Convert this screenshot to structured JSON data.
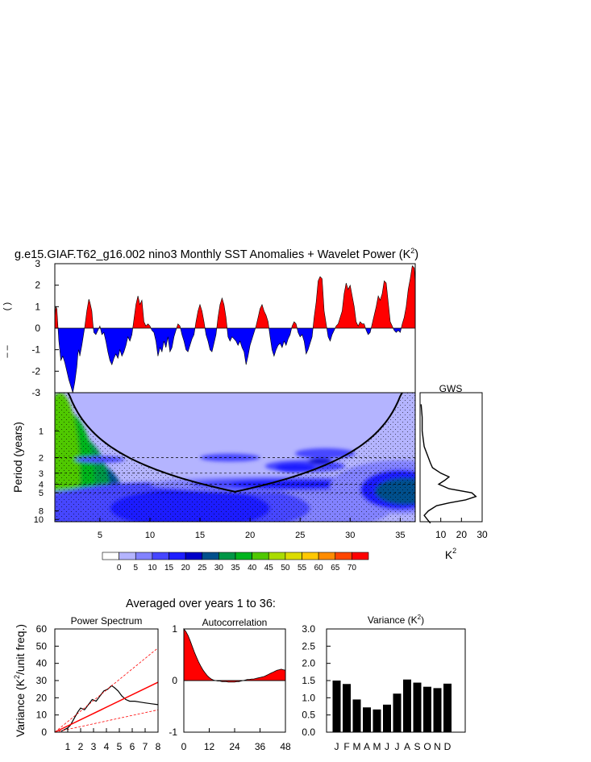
{
  "title": "g.e15.GIAF.T62_g16.002 nino3 Monthly SST Anomalies + Wavelet Power (K",
  "title_sup": "2",
  "title_close": ")",
  "colors": {
    "positive": "#ff0000",
    "negative": "#0000ff",
    "dashed": "#ff0000",
    "bars": "#000000"
  },
  "chart_data": [
    {
      "type": "area",
      "name": "sst-anomaly",
      "ylim": [
        -3,
        3
      ],
      "yticks": [
        "-3",
        "-2",
        "-1",
        "0",
        "1",
        "2",
        "3"
      ],
      "ylabel_partial": "( )",
      "x_range": [
        0.5,
        36.5
      ],
      "points_x": [
        0.5,
        0.6,
        0.7,
        0.9,
        1.1,
        1.3,
        1.5,
        1.7,
        1.9,
        2.1,
        2.3,
        2.5,
        2.7,
        2.8,
        2.9,
        3.0,
        3.2,
        3.5,
        3.7,
        3.9,
        4.0,
        4.2,
        4.3,
        4.4,
        4.6,
        4.8,
        5.0,
        5.2,
        5.4,
        5.6,
        5.8,
        6.0,
        6.2,
        6.4,
        6.6,
        6.8,
        7.0,
        7.2,
        7.4,
        7.6,
        7.8,
        8.0,
        8.2,
        8.4,
        8.6,
        8.8,
        9.0,
        9.2,
        9.4,
        9.6,
        9.8,
        10.0,
        10.2,
        10.4,
        10.6,
        10.8,
        11.0,
        11.2,
        11.4,
        11.6,
        11.8,
        12.0,
        12.2,
        12.4,
        12.6,
        12.8,
        13.0,
        13.2,
        13.4,
        13.6,
        13.8,
        14.0,
        14.2,
        14.4,
        14.6,
        14.8,
        15.0,
        15.2,
        15.4,
        15.6,
        15.8,
        16.0,
        16.2,
        16.4,
        16.6,
        16.8,
        17.0,
        17.2,
        17.4,
        17.6,
        17.8,
        18.0,
        18.2,
        18.4,
        18.6,
        18.8,
        19.0,
        19.2,
        19.4,
        19.6,
        19.8,
        20.0,
        20.2,
        20.4,
        20.6,
        20.8,
        21.0,
        21.2,
        21.4,
        21.6,
        21.8,
        22.0,
        22.2,
        22.4,
        22.6,
        22.8,
        23.0,
        23.2,
        23.4,
        23.6,
        23.8,
        24.0,
        24.2,
        24.4,
        24.6,
        24.8,
        25.0,
        25.2,
        25.4,
        25.6,
        25.8,
        26.0,
        26.2,
        26.4,
        26.6,
        26.8,
        27.0,
        27.2,
        27.4,
        27.6,
        27.8,
        28.0,
        28.2,
        28.4,
        28.6,
        28.8,
        29.0,
        29.2,
        29.4,
        29.6,
        29.8,
        30.0,
        30.2,
        30.4,
        30.6,
        30.8,
        31.0,
        31.2,
        31.4,
        31.6,
        31.8,
        32.0,
        32.2,
        32.4,
        32.6,
        32.8,
        33.0,
        33.2,
        33.4,
        33.6,
        33.8,
        34.0,
        34.2,
        34.4,
        34.6,
        34.8,
        35.0,
        35.2,
        35.4,
        35.6,
        35.8,
        36.0,
        36.2,
        36.4,
        36.5
      ],
      "points_y": [
        0.5,
        1.0,
        0.9,
        -0.6,
        -1.5,
        -1.3,
        -1.6,
        -2.0,
        -2.4,
        -2.7,
        -3.0,
        -2.5,
        -1.8,
        -1.2,
        -1.0,
        -1.3,
        -0.8,
        0.1,
        0.8,
        1.35,
        1.2,
        0.8,
        0.2,
        -0.2,
        -0.3,
        -0.1,
        0.1,
        -0.3,
        -0.2,
        -0.6,
        -1.1,
        -1.5,
        -1.7,
        -1.4,
        -1.2,
        -1.4,
        -1.0,
        -1.3,
        -1.1,
        -0.8,
        -0.4,
        -0.6,
        -0.3,
        0.4,
        1.1,
        1.5,
        1.1,
        1.3,
        0.3,
        0.1,
        0.2,
        0.1,
        -0.1,
        -0.2,
        -0.6,
        -1.3,
        -0.9,
        -1.1,
        -0.6,
        -0.9,
        -0.4,
        -1.1,
        -0.9,
        -0.4,
        -0.1,
        0.2,
        0.1,
        -0.3,
        -0.6,
        -1.0,
        -1.1,
        -0.8,
        -0.5,
        -0.3,
        0.3,
        0.8,
        1.1,
        0.8,
        0.3,
        -0.3,
        -0.6,
        -1.0,
        -1.1,
        -0.7,
        -0.3,
        0.5,
        1.1,
        1.4,
        1.1,
        0.5,
        -0.4,
        -0.6,
        -0.4,
        -0.5,
        -0.6,
        -0.8,
        -0.6,
        -0.9,
        -1.1,
        -1.7,
        -1.3,
        -0.8,
        -0.5,
        -0.2,
        0.1,
        0.5,
        0.9,
        1.1,
        0.8,
        0.6,
        0.3,
        -0.4,
        -1.0,
        -1.3,
        -1.0,
        -0.8,
        -0.7,
        -0.9,
        -0.6,
        -0.8,
        -0.5,
        -0.3,
        0.1,
        0.3,
        0.2,
        -0.2,
        -0.4,
        -0.3,
        -0.6,
        -1.2,
        -1.0,
        -0.7,
        -0.4,
        0.5,
        1.2,
        2.2,
        2.4,
        2.3,
        0.8,
        0.2,
        -0.4,
        -0.6,
        -0.3,
        -0.1,
        0.1,
        0.2,
        0.5,
        0.8,
        1.6,
        2.1,
        1.8,
        2.0,
        1.5,
        1.0,
        0.3,
        0.1,
        0.3,
        0.2,
        0.2,
        -0.1,
        -0.3,
        -0.2,
        0.2,
        0.6,
        1.0,
        1.5,
        1.3,
        1.6,
        2.2,
        2.1,
        1.2,
        0.3,
        0.1,
        -0.1,
        -0.2,
        -0.1,
        -0.2,
        0.2,
        0.5,
        1.0,
        1.8,
        2.3,
        2.9,
        2.8,
        2.1,
        2.3,
        2.5,
        1.4
      ]
    },
    {
      "type": "heatmap",
      "name": "wavelet-power",
      "ylabel": "Period (years)",
      "x_range": [
        0.5,
        36.5
      ],
      "xticks": [
        "5",
        "10",
        "15",
        "20",
        "25",
        "30",
        "35"
      ],
      "yticks": [
        "1",
        "2",
        "3",
        "4",
        "5",
        "8",
        "10"
      ],
      "dashed_periods": [
        2,
        3,
        4,
        5
      ],
      "colorbar_labels": [
        "0",
        "5",
        "10",
        "15",
        "20",
        "25",
        "30",
        "35",
        "40",
        "45",
        "50",
        "55",
        "60",
        "65",
        "70"
      ],
      "colorbar_colors": [
        "#ffffff",
        "#b4b4ff",
        "#8282ff",
        "#4646ff",
        "#1e1eff",
        "#0000c8",
        "#00508c",
        "#009646",
        "#00b41e",
        "#50c800",
        "#aadc00",
        "#dcdc00",
        "#ffc800",
        "#ff8c00",
        "#ff4600",
        "#ff0000"
      ]
    },
    {
      "type": "line",
      "name": "gws",
      "title": "GWS",
      "xlabel": "K",
      "xlabel_sup": "2",
      "xticks": [
        "10",
        "20",
        "30"
      ],
      "xlim": [
        0,
        30
      ],
      "periods": [
        0.5,
        0.7,
        1.0,
        1.5,
        2.0,
        2.3,
        2.6,
        3.0,
        3.3,
        3.6,
        4.0,
        4.5,
        5.0,
        5.5,
        6.0,
        6.5,
        7.0,
        8.0,
        9.0,
        10.0,
        11.0
      ],
      "power": [
        0.5,
        1.0,
        1.0,
        2.0,
        4.0,
        5.0,
        6.0,
        10.0,
        14.0,
        12.0,
        9.0,
        14.0,
        25.0,
        27.0,
        22.0,
        14.0,
        8.0,
        4.0,
        2.0,
        3.5,
        5.0
      ]
    },
    {
      "type": "line",
      "name": "power-spectrum",
      "subtitle": "Averaged over years 1 to 36:",
      "title": "Power Spectrum",
      "ylabel": "Variance (K",
      "ylabel_sup": "2",
      "ylabel_close": "/unit freq.)",
      "xlim": [
        0,
        8
      ],
      "ylim": [
        0,
        60
      ],
      "xticks": [
        "1",
        "2",
        "3",
        "4",
        "5",
        "6",
        "7",
        "8"
      ],
      "yticks": [
        "0",
        "10",
        "20",
        "30",
        "40",
        "50",
        "60"
      ],
      "series": [
        {
          "x": [
            0.5,
            1.0,
            1.2,
            1.5,
            1.8,
            2.0,
            2.3,
            2.6,
            2.9,
            3.2,
            3.5,
            3.8,
            4.1,
            4.4,
            4.6,
            4.9,
            5.2,
            5.5,
            5.8,
            6.2,
            6.6,
            7.0,
            7.5,
            8.0
          ],
          "values": [
            0.5,
            2.5,
            4,
            8,
            12,
            14,
            13,
            16,
            19,
            18,
            21,
            24,
            25,
            27,
            26,
            24,
            21,
            19,
            18,
            18,
            17.5,
            17,
            16.5,
            16
          ]
        },
        {
          "x": [
            0,
            8
          ],
          "values": [
            0,
            29
          ]
        },
        {
          "x": [
            0,
            8
          ],
          "values": [
            0,
            49
          ]
        },
        {
          "x": [
            0,
            8
          ],
          "values": [
            0,
            13
          ]
        }
      ]
    },
    {
      "type": "area",
      "name": "autocorrelation",
      "title": "Autocorrelation",
      "xlim": [
        0,
        48
      ],
      "ylim": [
        -1,
        1
      ],
      "xticks": [
        "0",
        "12",
        "24",
        "36",
        "48"
      ],
      "yticks": [
        "-1",
        "0",
        "1"
      ],
      "x": [
        0,
        1,
        2,
        3,
        4,
        5,
        6,
        7,
        8,
        9,
        10,
        11,
        12,
        13,
        14,
        15,
        16,
        17,
        18,
        19,
        20,
        21,
        22,
        23,
        24,
        25,
        26,
        27,
        28,
        29,
        30,
        31,
        32,
        33,
        34,
        35,
        36,
        37,
        38,
        39,
        40,
        41,
        42,
        43,
        44,
        45,
        46,
        47,
        48
      ],
      "values": [
        1.0,
        0.95,
        0.87,
        0.77,
        0.66,
        0.55,
        0.45,
        0.36,
        0.28,
        0.21,
        0.15,
        0.1,
        0.06,
        0.03,
        0.01,
        0.0,
        -0.01,
        -0.01,
        -0.02,
        -0.02,
        -0.02,
        -0.03,
        -0.03,
        -0.03,
        -0.03,
        -0.02,
        -0.02,
        -0.01,
        0.0,
        0.01,
        0.02,
        0.02,
        0.03,
        0.03,
        0.04,
        0.05,
        0.06,
        0.07,
        0.08,
        0.1,
        0.12,
        0.14,
        0.16,
        0.18,
        0.2,
        0.21,
        0.22,
        0.21,
        0.2
      ]
    },
    {
      "type": "bar",
      "name": "monthly-variance",
      "title": "Variance (K",
      "title_sup": "2",
      "title_close": ")",
      "categories": [
        "J",
        "F",
        "M",
        "A",
        "M",
        "J",
        "J",
        "A",
        "S",
        "O",
        "N",
        "D"
      ],
      "values": [
        1.5,
        1.4,
        0.95,
        0.72,
        0.66,
        0.8,
        1.12,
        1.53,
        1.44,
        1.32,
        1.28,
        1.41
      ],
      "ylim": [
        0,
        3
      ],
      "yticks": [
        "0.0",
        "0.5",
        "1.0",
        "1.5",
        "2.0",
        "2.5",
        "3.0"
      ]
    }
  ]
}
